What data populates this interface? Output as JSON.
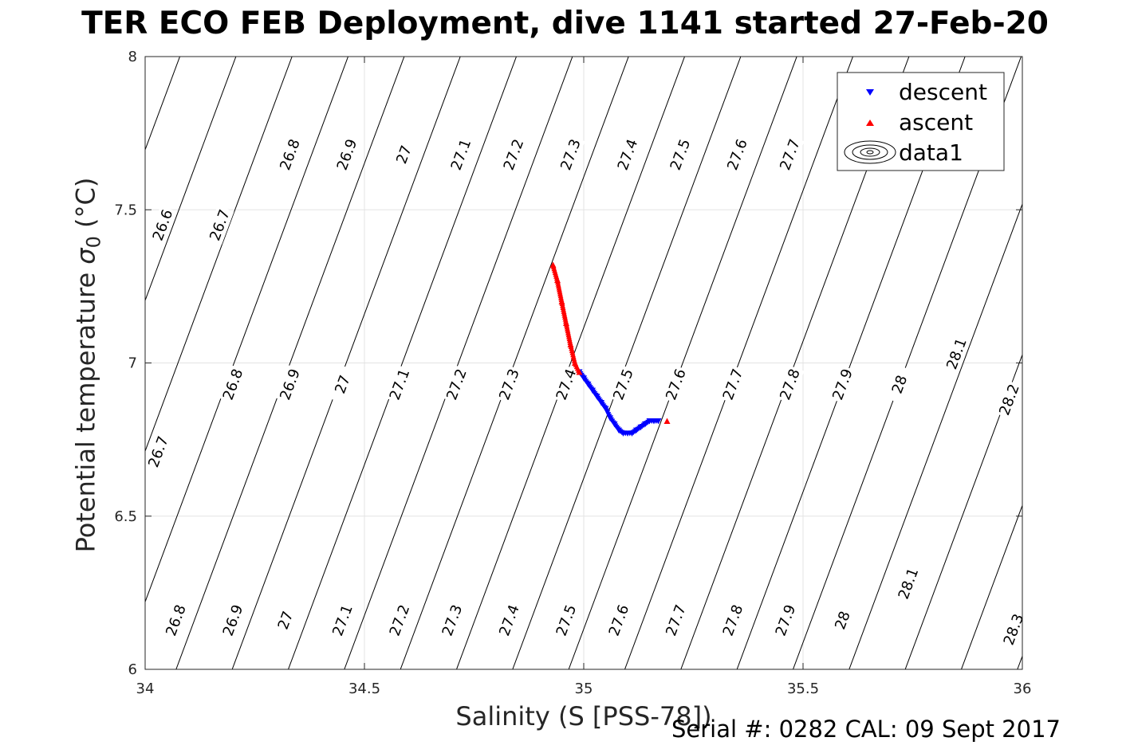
{
  "title": "TER ECO FEB Deployment, dive 1141 started 27-Feb-20",
  "footer": "Serial #: 0282  CAL: 09 Sept 2017",
  "chart_data": {
    "type": "scatter",
    "xlabel": "Salinity (S [PSS-78])",
    "ylabel_main": "Potential temperature ",
    "ylabel_sigma": "σ",
    "ylabel_sub": "0",
    "ylabel_unit": " (°C)",
    "xlim": [
      34,
      36
    ],
    "ylim": [
      6,
      8
    ],
    "xticks": [
      34,
      34.5,
      35,
      35.5,
      36
    ],
    "xtick_labels": [
      "34",
      "34.5",
      "35",
      "35.5",
      "36"
    ],
    "yticks": [
      6,
      6.5,
      7,
      7.5,
      8
    ],
    "ytick_labels": [
      "6",
      "6.5",
      "7",
      "7.5",
      "8"
    ],
    "grid": true,
    "legend_position": "top-right",
    "legend": [
      "descent",
      "ascent",
      "data1"
    ],
    "contour_levels": [
      26.6,
      26.7,
      26.8,
      26.9,
      27.0,
      27.1,
      27.2,
      27.3,
      27.4,
      27.5,
      27.6,
      27.7,
      27.8,
      27.9,
      28.0,
      28.1,
      28.2,
      28.3
    ],
    "contour_labels": [
      {
        "text": "26.6",
        "s": 34.04,
        "t": 7.45
      },
      {
        "text": "26.7",
        "s": 34.17,
        "t": 7.45
      },
      {
        "text": "26.8",
        "s": 34.33,
        "t": 7.68
      },
      {
        "text": "26.9",
        "s": 34.46,
        "t": 7.68
      },
      {
        "text": "27",
        "s": 34.59,
        "t": 7.68
      },
      {
        "text": "27.1",
        "s": 34.72,
        "t": 7.68
      },
      {
        "text": "27.2",
        "s": 34.84,
        "t": 7.68
      },
      {
        "text": "27.3",
        "s": 34.97,
        "t": 7.68
      },
      {
        "text": "27.4",
        "s": 35.1,
        "t": 7.68
      },
      {
        "text": "27.5",
        "s": 35.22,
        "t": 7.68
      },
      {
        "text": "27.6",
        "s": 35.35,
        "t": 7.68
      },
      {
        "text": "27.7",
        "s": 35.47,
        "t": 7.68
      },
      {
        "text": "26.7",
        "s": 34.03,
        "t": 6.71
      },
      {
        "text": "26.8",
        "s": 34.2,
        "t": 6.93
      },
      {
        "text": "26.9",
        "s": 34.33,
        "t": 6.93
      },
      {
        "text": "27",
        "s": 34.45,
        "t": 6.93
      },
      {
        "text": "27.1",
        "s": 34.58,
        "t": 6.93
      },
      {
        "text": "27.2",
        "s": 34.71,
        "t": 6.93
      },
      {
        "text": "27.3",
        "s": 34.83,
        "t": 6.93
      },
      {
        "text": "27.4",
        "s": 34.96,
        "t": 6.93
      },
      {
        "text": "27.5",
        "s": 35.09,
        "t": 6.93
      },
      {
        "text": "27.6",
        "s": 35.21,
        "t": 6.93
      },
      {
        "text": "27.7",
        "s": 35.34,
        "t": 6.93
      },
      {
        "text": "27.8",
        "s": 35.47,
        "t": 6.93
      },
      {
        "text": "27.9",
        "s": 35.59,
        "t": 6.93
      },
      {
        "text": "28",
        "s": 35.72,
        "t": 6.93
      },
      {
        "text": "28.1",
        "s": 35.85,
        "t": 7.03
      },
      {
        "text": "28.2",
        "s": 35.97,
        "t": 6.88
      },
      {
        "text": "26.8",
        "s": 34.07,
        "t": 6.16
      },
      {
        "text": "26.9",
        "s": 34.2,
        "t": 6.16
      },
      {
        "text": "27",
        "s": 34.32,
        "t": 6.16
      },
      {
        "text": "27.1",
        "s": 34.45,
        "t": 6.16
      },
      {
        "text": "27.2",
        "s": 34.58,
        "t": 6.16
      },
      {
        "text": "27.3",
        "s": 34.7,
        "t": 6.16
      },
      {
        "text": "27.4",
        "s": 34.83,
        "t": 6.16
      },
      {
        "text": "27.5",
        "s": 34.96,
        "t": 6.16
      },
      {
        "text": "27.6",
        "s": 35.08,
        "t": 6.16
      },
      {
        "text": "27.7",
        "s": 35.21,
        "t": 6.16
      },
      {
        "text": "27.8",
        "s": 35.34,
        "t": 6.16
      },
      {
        "text": "27.9",
        "s": 35.46,
        "t": 6.16
      },
      {
        "text": "28",
        "s": 35.59,
        "t": 6.16
      },
      {
        "text": "28.1",
        "s": 35.74,
        "t": 6.28
      },
      {
        "text": "28.3",
        "s": 35.98,
        "t": 6.13
      }
    ],
    "series": [
      {
        "name": "descent",
        "color": "#0000ff",
        "marker": "triangle-down",
        "points": [
          [
            34.99,
            6.97
          ],
          [
            35.0,
            6.95
          ],
          [
            35.01,
            6.93
          ],
          [
            35.02,
            6.91
          ],
          [
            35.03,
            6.89
          ],
          [
            35.04,
            6.87
          ],
          [
            35.05,
            6.85
          ],
          [
            35.06,
            6.82
          ],
          [
            35.07,
            6.8
          ],
          [
            35.08,
            6.78
          ],
          [
            35.09,
            6.77
          ],
          [
            35.1,
            6.77
          ],
          [
            35.11,
            6.77
          ],
          [
            35.12,
            6.78
          ],
          [
            35.13,
            6.79
          ],
          [
            35.14,
            6.8
          ],
          [
            35.15,
            6.81
          ],
          [
            35.16,
            6.81
          ],
          [
            35.17,
            6.81
          ]
        ]
      },
      {
        "name": "ascent",
        "color": "#ff0000",
        "marker": "triangle-up",
        "points": [
          [
            34.93,
            7.32
          ],
          [
            34.94,
            7.27
          ],
          [
            34.95,
            7.2
          ],
          [
            34.96,
            7.13
          ],
          [
            34.97,
            7.06
          ],
          [
            34.98,
            7.0
          ],
          [
            34.99,
            6.97
          ],
          [
            35.19,
            6.81
          ]
        ]
      }
    ]
  }
}
